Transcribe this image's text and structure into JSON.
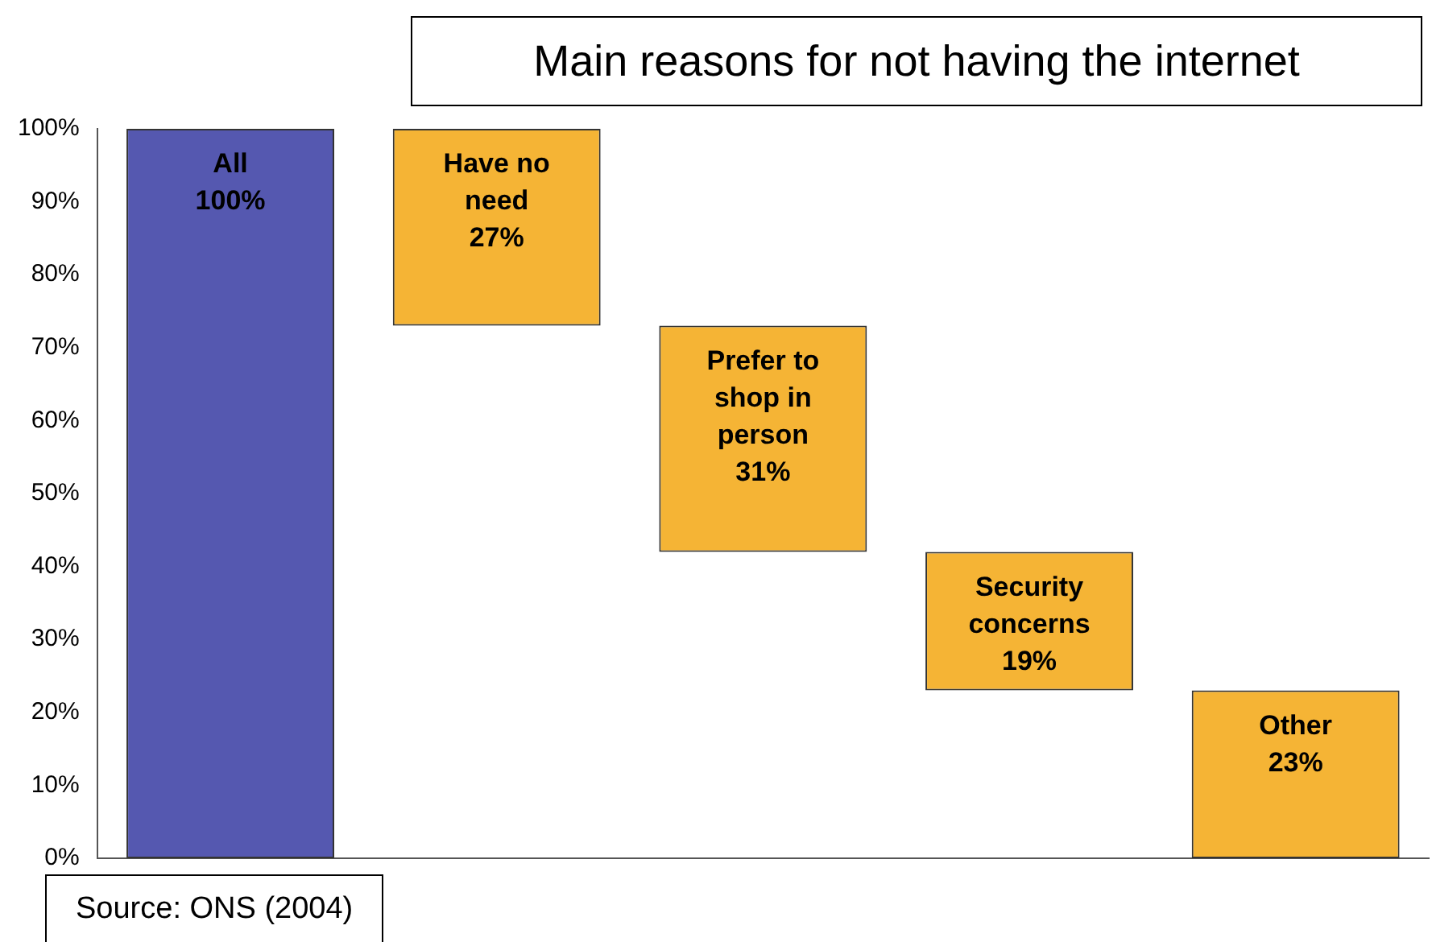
{
  "chart_data": {
    "type": "bar",
    "title": "Main reasons for not having the internet",
    "categories": [
      "All",
      "Have no need",
      "Prefer to shop in person",
      "Security concerns",
      "Other"
    ],
    "values": [
      100,
      27,
      31,
      19,
      23
    ],
    "base": [
      0,
      73,
      42,
      23,
      0
    ],
    "colors": [
      "#5558b0",
      "#f5b435",
      "#f5b435",
      "#f5b435",
      "#f5b435"
    ],
    "value_labels": [
      "100%",
      "27%",
      "31%",
      "19%",
      "23%"
    ],
    "ylim": [
      0,
      100
    ],
    "yticks": [
      {
        "value": 0,
        "label": "0%"
      },
      {
        "value": 10,
        "label": "10%"
      },
      {
        "value": 20,
        "label": "20%"
      },
      {
        "value": 30,
        "label": "30%"
      },
      {
        "value": 40,
        "label": "40%"
      },
      {
        "value": 50,
        "label": "50%"
      },
      {
        "value": 60,
        "label": "60%"
      },
      {
        "value": 70,
        "label": "70%"
      },
      {
        "value": 80,
        "label": "80%"
      },
      {
        "value": 90,
        "label": "90%"
      },
      {
        "value": 100,
        "label": "100%"
      }
    ],
    "tick_labels": "y",
    "grid": false,
    "legend": false,
    "annotations": [
      "Source: ONS (2004)"
    ]
  }
}
